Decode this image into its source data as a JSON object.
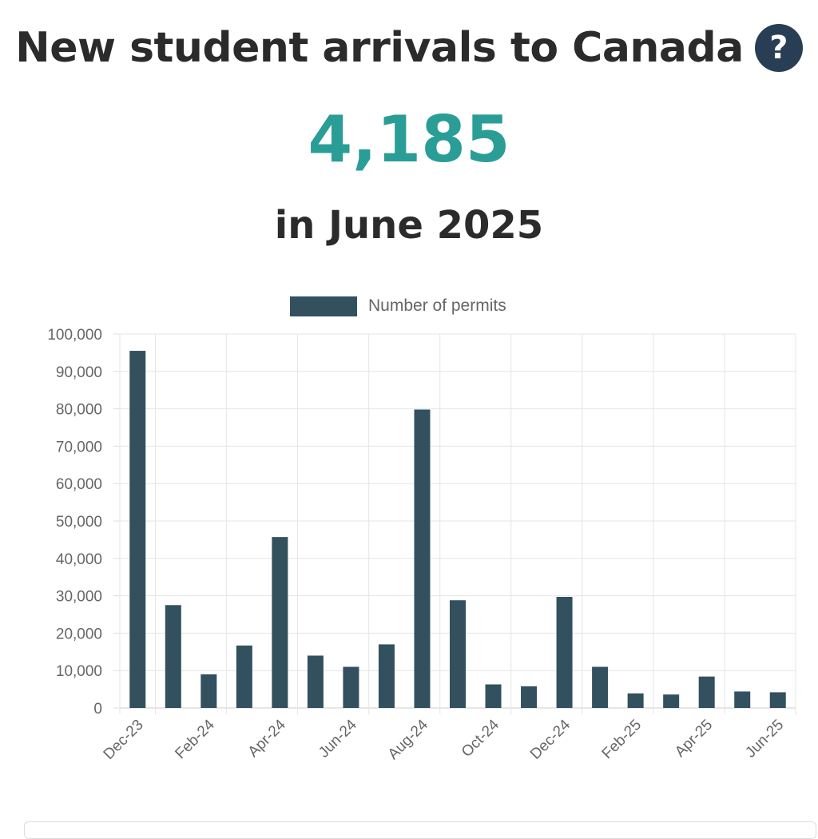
{
  "header": {
    "title": "New student arrivals to Canada",
    "help_icon": "question-circle-icon",
    "big_number": "4,185",
    "subtitle": "in June 2025"
  },
  "colors": {
    "bar": "#33505f",
    "accent": "#2a9d96",
    "icon_bg": "#273e55"
  },
  "chart_data": {
    "type": "bar",
    "categories": [
      "Dec-23",
      "Jan-24",
      "Feb-24",
      "Mar-24",
      "Apr-24",
      "May-24",
      "Jun-24",
      "Jul-24",
      "Aug-24",
      "Sep-24",
      "Oct-24",
      "Nov-24",
      "Dec-24",
      "Jan-25",
      "Feb-25",
      "Mar-25",
      "Apr-25",
      "May-25",
      "Jun-25"
    ],
    "tick_labels": [
      "Dec-23",
      "Feb-24",
      "Apr-24",
      "Jun-24",
      "Aug-24",
      "Oct-24",
      "Dec-24",
      "Feb-25",
      "Apr-25",
      "Jun-25"
    ],
    "series": [
      {
        "name": "Number of permits",
        "values": [
          95500,
          27500,
          9000,
          16700,
          45700,
          14000,
          11000,
          17000,
          79800,
          28800,
          6300,
          5800,
          29700,
          11000,
          3900,
          3600,
          8400,
          4400,
          4185
        ]
      }
    ],
    "ylim": [
      0,
      100000
    ],
    "yticks": [
      0,
      10000,
      20000,
      30000,
      40000,
      50000,
      60000,
      70000,
      80000,
      90000,
      100000
    ],
    "ytick_labels": [
      "0",
      "10,000",
      "20,000",
      "30,000",
      "40,000",
      "50,000",
      "60,000",
      "70,000",
      "80,000",
      "90,000",
      "100,000"
    ],
    "grid": true,
    "legend": "top-center"
  }
}
